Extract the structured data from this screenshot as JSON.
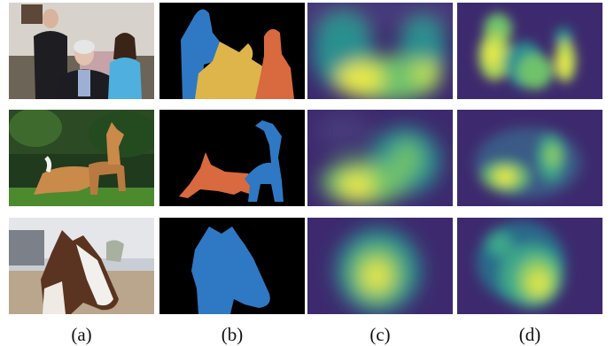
{
  "figure": {
    "captions": [
      "(a)",
      "(b)",
      "(c)",
      "(d)"
    ],
    "columns": [
      "input-photo",
      "segmentation-mask",
      "coarse-heatmap",
      "refined-heatmap"
    ],
    "rows": [
      "people",
      "deer",
      "horse"
    ]
  },
  "colors": {
    "mask_background": "#000000",
    "person_blue": "#2f78c4",
    "person_yellow": "#ddb54a",
    "person_orange": "#d9693e",
    "deer_orange": "#d9693e",
    "deer_blue": "#2f78c4",
    "horse_blue": "#2f78c4",
    "heat_low": "#3d2a6e",
    "heat_mid": "#2a8f8f",
    "heat_high": "#e8e84a"
  }
}
